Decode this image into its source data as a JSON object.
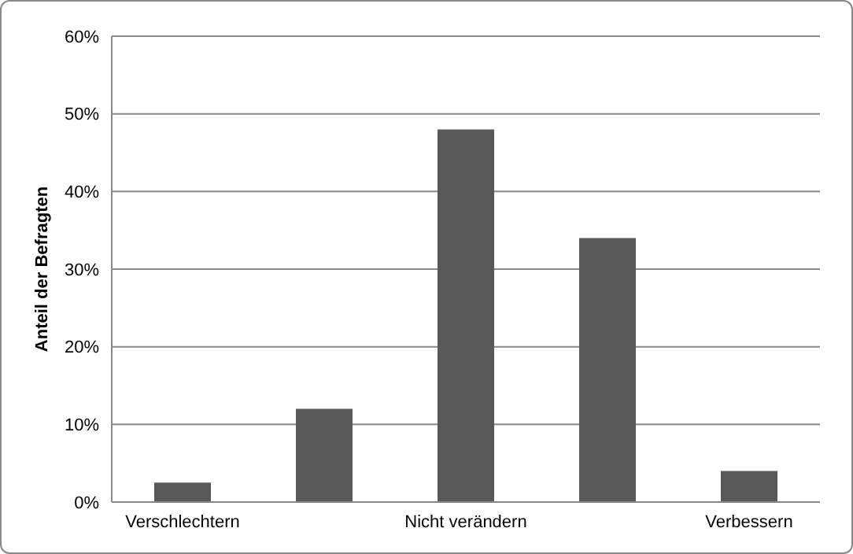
{
  "chart_data": {
    "type": "bar",
    "ylabel": "Anteil der Befragten",
    "categories": [
      "Verschlechtern",
      null,
      "Nicht verändern",
      null,
      "Verbessern"
    ],
    "values": [
      2.5,
      12,
      48,
      34,
      4
    ],
    "color": "#595959",
    "ylim": [
      0,
      60
    ],
    "yticks": [
      {
        "value": 0,
        "label": "0%"
      },
      {
        "value": 10,
        "label": "10%"
      },
      {
        "value": 20,
        "label": "20%"
      },
      {
        "value": 30,
        "label": "30%"
      },
      {
        "value": 40,
        "label": "40%"
      },
      {
        "value": 50,
        "label": "50%"
      },
      {
        "value": 60,
        "label": "60%"
      }
    ],
    "grid": "y"
  }
}
